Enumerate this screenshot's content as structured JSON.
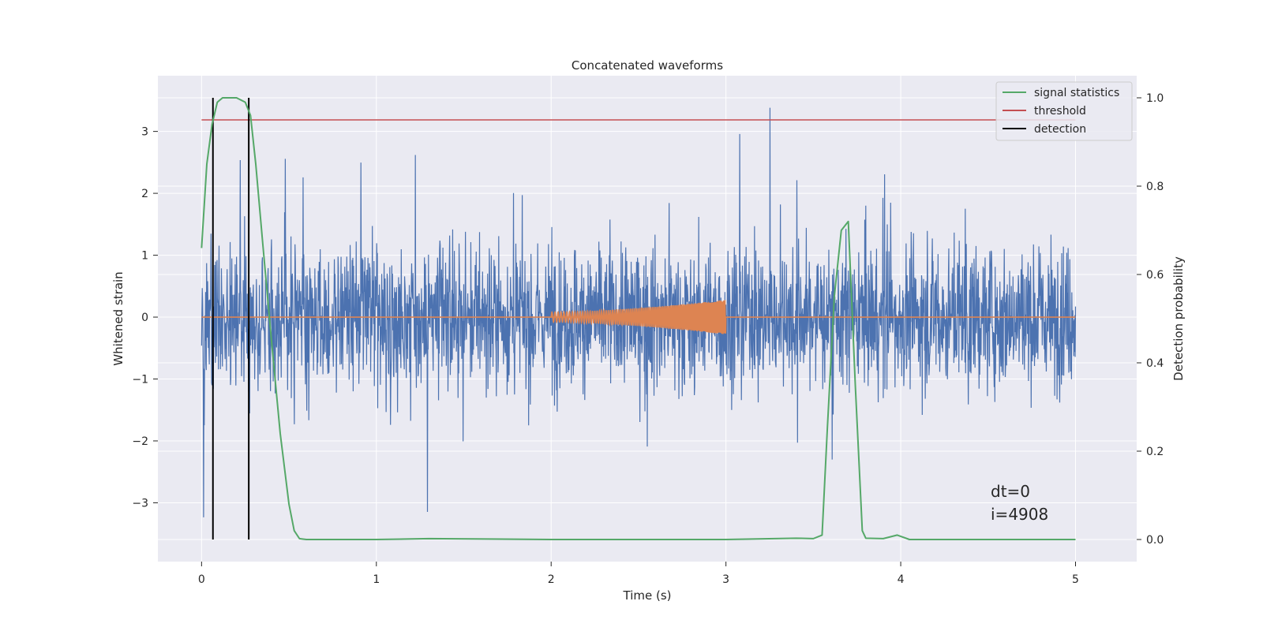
{
  "chart_data": {
    "type": "line",
    "title": "Concatenated waveforms",
    "xlabel": "Time (s)",
    "ylabel": "Whitened strain",
    "y2label": "Detection probability",
    "xlim": [
      -0.25,
      5.35
    ],
    "ylim": [
      -3.95,
      3.9
    ],
    "y2lim": [
      -0.05,
      1.05
    ],
    "x_ticks": [
      "0",
      "1",
      "2",
      "3",
      "4",
      "5"
    ],
    "y_ticks": [
      "−3",
      "−2",
      "−1",
      "0",
      "1",
      "2",
      "3"
    ],
    "y2_ticks": [
      "0.0",
      "0.2",
      "0.4",
      "0.6",
      "0.8",
      "1.0"
    ],
    "grid": true,
    "legend_position": "top-right",
    "colors": {
      "background": "#eaeaf2",
      "grid": "#ffffff",
      "strain": "#4c72b0",
      "injection": "#dd8452",
      "signal_statistics": "#55a868",
      "threshold": "#c44e52",
      "detection": "#000000"
    },
    "series": [
      {
        "name": "signal statistics",
        "axis": "right",
        "x": [
          0.0,
          0.03,
          0.06,
          0.09,
          0.12,
          0.15,
          0.2,
          0.25,
          0.28,
          0.31,
          0.35,
          0.4,
          0.45,
          0.5,
          0.53,
          0.56,
          0.6,
          1.0,
          1.3,
          2.0,
          3.0,
          3.4,
          3.5,
          3.55,
          3.58,
          3.62,
          3.66,
          3.7,
          3.74,
          3.78,
          3.8,
          3.9,
          3.98,
          4.05,
          4.5,
          5.0
        ],
        "y": [
          0.66,
          0.85,
          0.94,
          0.99,
          1.0,
          1.0,
          1.0,
          0.99,
          0.96,
          0.85,
          0.67,
          0.45,
          0.24,
          0.08,
          0.02,
          0.002,
          0.0,
          0.0,
          0.002,
          0.0,
          0.0,
          0.003,
          0.002,
          0.01,
          0.25,
          0.55,
          0.7,
          0.72,
          0.35,
          0.02,
          0.003,
          0.002,
          0.01,
          0.0,
          0.0,
          0.0
        ]
      },
      {
        "name": "threshold",
        "axis": "right",
        "x": [
          0.0,
          5.0
        ],
        "y": [
          0.95,
          0.95
        ]
      },
      {
        "name": "detection",
        "axis": "right",
        "x": [
          0.065,
          0.27
        ],
        "y": [
          0.0,
          1.0
        ]
      }
    ],
    "strain_range": {
      "x": [
        0.0,
        5.0
      ],
      "approx_peak": [
        -3.6,
        3.5
      ]
    },
    "injection_range": {
      "x": [
        2.0,
        3.0
      ],
      "start_amplitude": 0.08,
      "end_amplitude": 0.28
    },
    "annotations": [
      "dt=0",
      "i=4908"
    ]
  }
}
